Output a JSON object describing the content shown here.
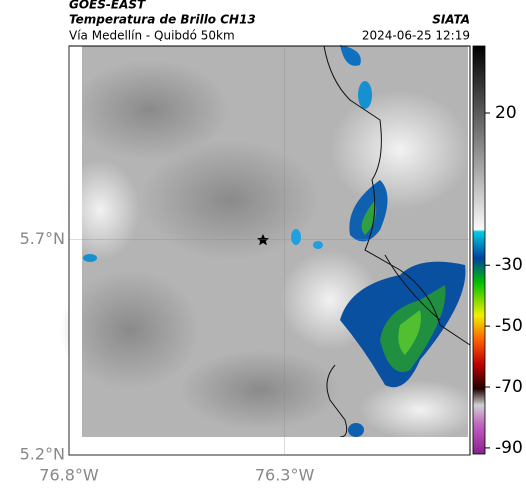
{
  "header": {
    "title": "GOES-EAST",
    "subtitle": "Temperatura de Brillo CH13",
    "location": "Vía Medellín - Quibdó 50km",
    "source": "SIATA",
    "datetime": "2024-06-25 12:19"
  },
  "map": {
    "ylim": [
      5.2,
      6.15
    ],
    "xlim": [
      -76.8,
      -75.87
    ],
    "yticks": [
      {
        "value": 5.7,
        "label": "5.7°N"
      },
      {
        "value": 5.2,
        "label": "5.2°N"
      }
    ],
    "xticks": [
      {
        "value": -76.8,
        "label": "76.8°W"
      },
      {
        "value": -76.3,
        "label": "76.3°W"
      }
    ]
  },
  "colorbar": {
    "lim": [
      -92,
      42
    ],
    "ticks": [
      20,
      -30,
      -50,
      -70,
      -90
    ]
  }
}
